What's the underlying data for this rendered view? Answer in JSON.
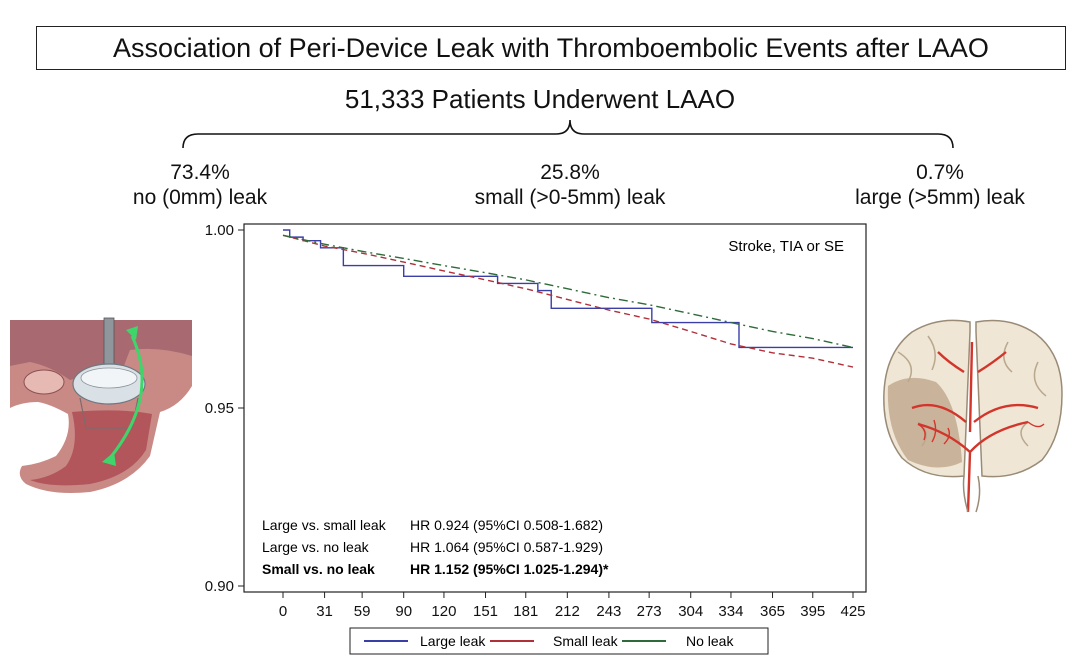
{
  "header": {
    "title": "Association of Peri-Device Leak with Thromboembolic Events after LAAO",
    "subtitle": "51,333 Patients Underwent LAAO"
  },
  "groups": [
    {
      "pct": "73.4%",
      "label": "no (0mm) leak"
    },
    {
      "pct": "25.8%",
      "label": "small (>0-5mm) leak"
    },
    {
      "pct": "0.7%",
      "label": "large (>5mm) leak"
    }
  ],
  "illustrations": {
    "left": "laao-device-icon",
    "right": "brain-stroke-icon"
  },
  "chart_data": {
    "type": "line",
    "annotation": "Stroke, TIA or SE",
    "ylim": [
      0.9,
      1.0
    ],
    "yticks": [
      1.0,
      0.95,
      0.9
    ],
    "ytick_labels": [
      "1.00",
      "0.95",
      "0.90"
    ],
    "xlim": [
      0,
      425
    ],
    "xticks": [
      0,
      31,
      59,
      90,
      120,
      151,
      181,
      212,
      243,
      273,
      304,
      334,
      365,
      395,
      425
    ],
    "hr_lines": [
      {
        "label": "Large vs. small leak",
        "value": "HR 0.924 (95%CI 0.508-1.682)",
        "bold": false
      },
      {
        "label": "Large vs. no leak",
        "value": "HR 1.064 (95%CI 0.587-1.929)",
        "bold": false
      },
      {
        "label": "Small vs. no leak",
        "value": "HR 1.152 (95%CI 1.025-1.294)*",
        "bold": true
      }
    ],
    "series": [
      {
        "name": "Large leak",
        "color": "#3a3fa8",
        "style": "step",
        "x": [
          0,
          5,
          15,
          28,
          45,
          59,
          75,
          90,
          125,
          160,
          190,
          200,
          225,
          250,
          275,
          300,
          333,
          340,
          425
        ],
        "y": [
          1.0,
          0.998,
          0.997,
          0.995,
          0.99,
          0.99,
          0.99,
          0.987,
          0.987,
          0.985,
          0.983,
          0.978,
          0.978,
          0.978,
          0.974,
          0.974,
          0.974,
          0.967,
          0.967
        ]
      },
      {
        "name": "Small leak",
        "color": "#b0303a",
        "style": "dashed",
        "x": [
          0,
          31,
          59,
          90,
          120,
          151,
          181,
          212,
          243,
          273,
          304,
          334,
          365,
          395,
          425
        ],
        "y": [
          0.9985,
          0.9955,
          0.9935,
          0.991,
          0.9885,
          0.986,
          0.9835,
          0.9805,
          0.9775,
          0.975,
          0.9715,
          0.968,
          0.9655,
          0.964,
          0.9615
        ]
      },
      {
        "name": "No leak",
        "color": "#2f6b3a",
        "style": "dashdot",
        "x": [
          0,
          31,
          59,
          90,
          120,
          151,
          181,
          212,
          243,
          273,
          304,
          334,
          365,
          395,
          425
        ],
        "y": [
          0.9985,
          0.996,
          0.994,
          0.992,
          0.99,
          0.988,
          0.986,
          0.9835,
          0.981,
          0.979,
          0.9765,
          0.974,
          0.9715,
          0.9695,
          0.967
        ]
      }
    ]
  }
}
